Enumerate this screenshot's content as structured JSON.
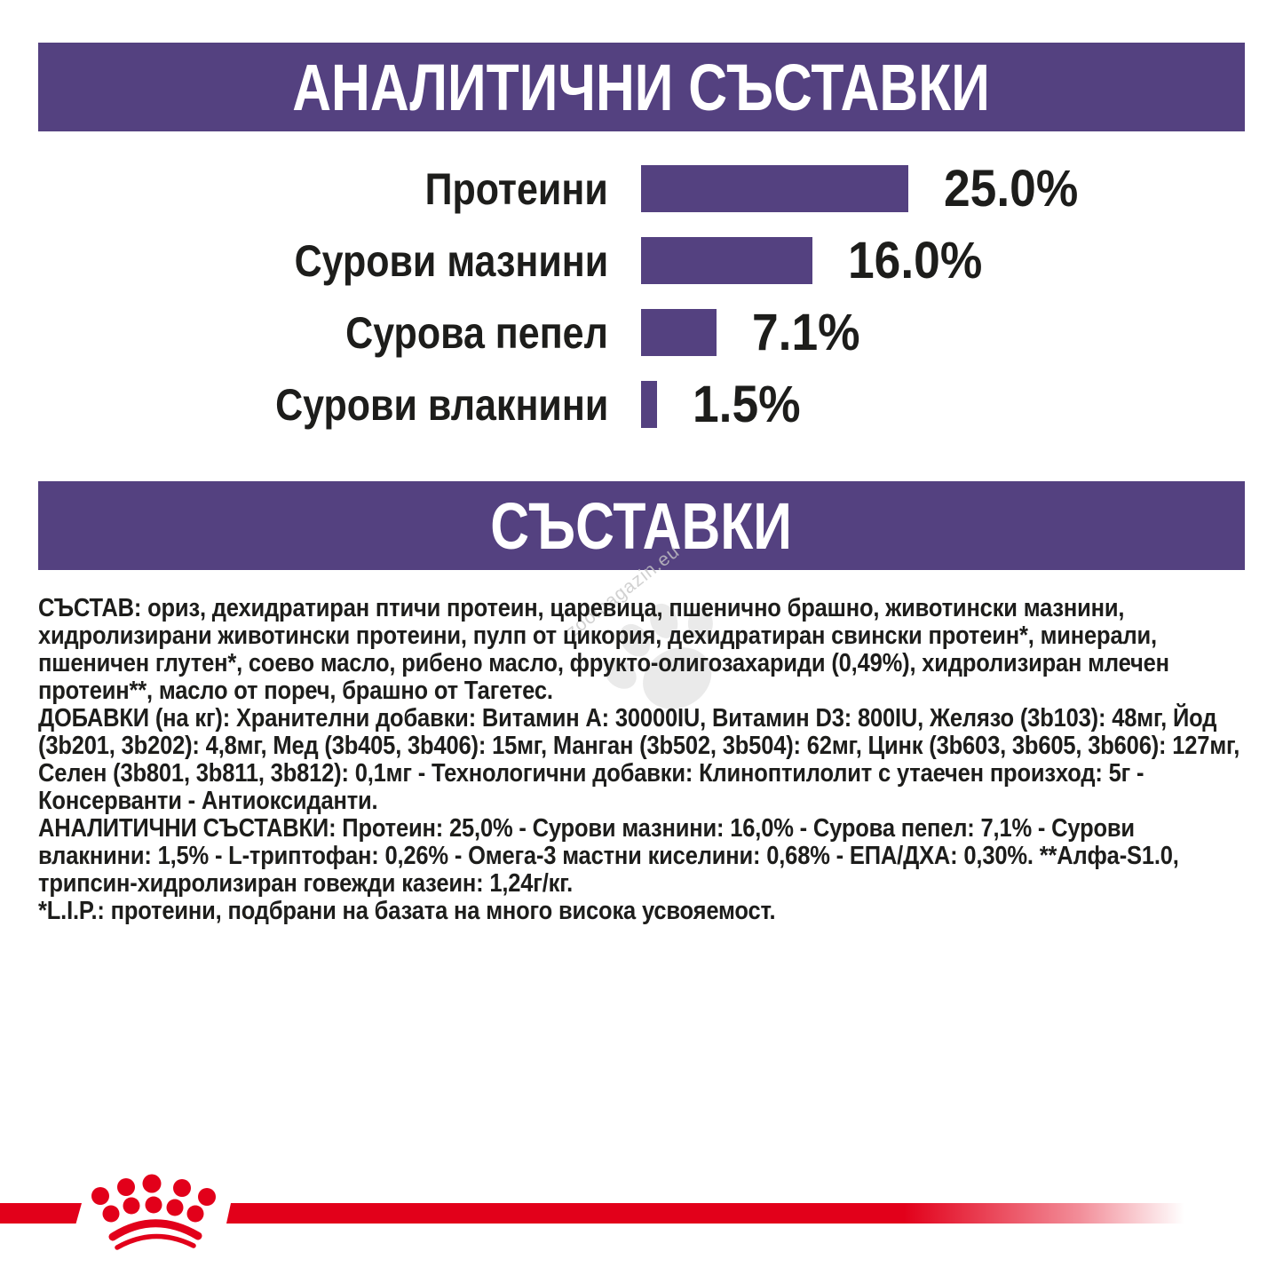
{
  "analytical_banner": {
    "title": "АНАЛИТИЧНИ СЪСТАВКИ"
  },
  "chart_data": {
    "type": "bar",
    "orientation": "horizontal",
    "categories": [
      "Протеини",
      "Сурови мазнини",
      "Сурова пепел",
      "Сурови влакнини"
    ],
    "values": [
      25.0,
      16.0,
      7.1,
      1.5
    ],
    "value_labels": [
      "25.0%",
      "16.0%",
      "7.1%",
      "1.5%"
    ],
    "unit": "%",
    "xlim": [
      0,
      25
    ],
    "grid": false,
    "legend": false,
    "bar_color": "#544180",
    "title": "",
    "xlabel": "",
    "ylabel": ""
  },
  "ingredients_banner": {
    "title": "СЪСТАВКИ"
  },
  "ingredients": {
    "composition": "СЪСТАВ: ориз, дехидратиран птичи протеин, царевица, пшенично брашно, животински мазнини, хидролизирани животински протеини, пулп от цикория, дехидратиран свински протеин*, минерали, пшеничен глутен*, соево масло, рибено масло, фрукто-олигозахариди (0,49%), хидролизиран млечен протеин**, масло от пореч, брашно от Тагетес.",
    "additives": "ДОБАВКИ (на кг): Хранителни добавки: Витамин A: 30000IU, Витамин D3: 800IU, Желязо (3b103): 48мг, Йод (3b201, 3b202): 4,8мг, Мед (3b405, 3b406): 15мг, Манган (3b502, 3b504): 62мг, Цинк (3b603, 3b605, 3b606): 127мг, Селен (3b801, 3b811, 3b812): 0,1мг - Технологични добавки: Клиноптилолит с утаечен произход: 5г - Консерванти - Антиоксиданти.",
    "analytical": "АНАЛИТИЧНИ СЪСТАВКИ: Протеин: 25,0% - Сурови мазнини: 16,0% - Сурова пепел: 7,1% - Сурови влакнини: 1,5% - L-триптофан: 0,26% - Омега-3 мастни киселини: 0,68% - ЕПА/ДХА: 0,30%. **Алфа-S1.0, трипсин-хидролизиран говежди казеин: 1,24г/кг.",
    "lip_note": "*L.I.P.: протеини, подбрани на базата на много висока усвояемост."
  },
  "watermark": {
    "text": "zoomagazin.eu"
  },
  "colors": {
    "banner_purple": "#544180",
    "bar_purple": "#544180",
    "brand_red": "#e2001a",
    "text_black": "#1d1d1b"
  }
}
